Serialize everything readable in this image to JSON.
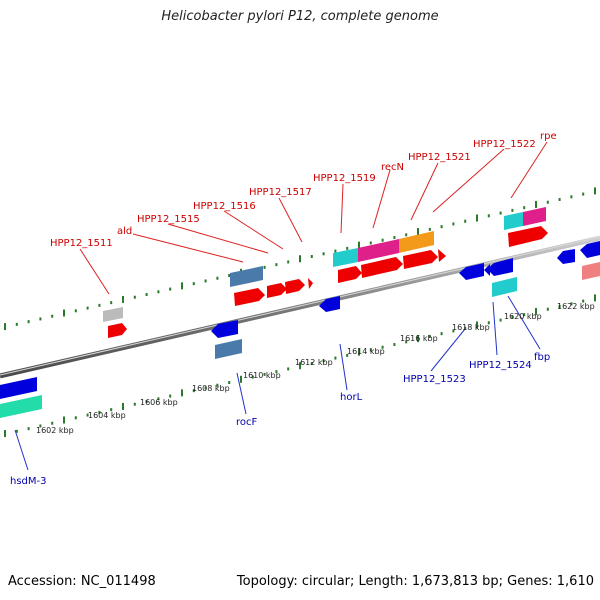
{
  "title": "Helicobacter pylori P12, complete genome",
  "footer": {
    "accession": "Accession: NC_011498",
    "summary": "Topology: circular; Length: 1,673,813 bp; Genes: 1,610"
  },
  "axis_ticks": [
    "1602 kbp",
    "1604 kbp",
    "1606 kbp",
    "1608 kbp",
    "1610 kbp",
    "1612 kbp",
    "1614 kbp",
    "1616 kbp",
    "1618 kbp",
    "1620 kbp",
    "1622 kbp"
  ],
  "top_labels": [
    "HPP12_1511",
    "ald",
    "HPP12_1515",
    "HPP12_1516",
    "HPP12_1517",
    "HPP12_1519",
    "recN",
    "HPP12_1521",
    "HPP12_1522",
    "rpe"
  ],
  "bottom_labels": [
    "hsdM-3",
    "rocF",
    "horL",
    "HPP12_1523",
    "HPP12_1524",
    "fbp"
  ],
  "colors": {
    "top_label": "#cc0000",
    "bottom_label": "#0000aa",
    "leader_top": "#dd2222",
    "leader_bottom": "#2233cc",
    "backbone": "#888888",
    "ticks": "#2a7a2a",
    "gene_red": "#ee0000",
    "gene_blue": "#0000dd",
    "cyan": "#22cccc",
    "magenta": "#e0208a",
    "orange": "#f39a1a",
    "steel": "#4a7aaa",
    "gray": "#bbbbbb",
    "green": "#22ddaa",
    "pink": "#f08080"
  }
}
